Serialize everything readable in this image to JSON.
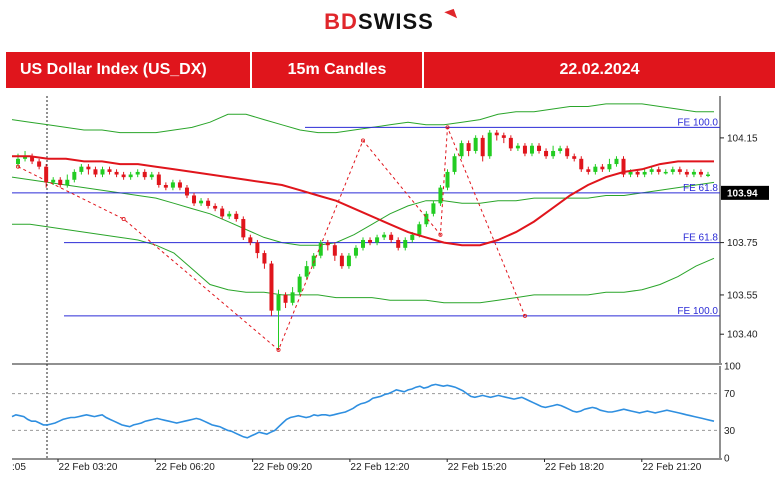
{
  "brand": {
    "logo_a": "BD",
    "logo_b": "SWISS"
  },
  "header": {
    "instrument": "US Dollar Index (US_DX)",
    "timeframe": "15m Candles",
    "date": "22.02.2024"
  },
  "colors": {
    "up": "#22cc22",
    "down": "#e0151c",
    "ma": "#e0151c",
    "band": "#2aa52a",
    "rsi": "#2f8fe0",
    "level": "#2b2bd6",
    "fib": "#e0151c",
    "header": "#e0151c"
  },
  "chart_data": [
    {
      "type": "candlestick",
      "title": "",
      "ylim": [
        103.29,
        104.31
      ],
      "yticks": [
        104.15,
        103.75,
        103.55,
        103.4
      ],
      "xticks": [
        "22 Feb 03:20",
        "22 Feb 06:20",
        "22 Feb 09:20",
        "22 Feb 12:20",
        "22 Feb 15:20",
        "22 Feb 18:20",
        "22 Feb 21:20"
      ],
      "xtick_partial": ":05",
      "current_price": "103.94",
      "levels": [
        {
          "label": "FE 100.0",
          "value": 104.19
        },
        {
          "label": "FE 61.8",
          "value": 103.94
        },
        {
          "label": "FE 61.8",
          "value": 103.75
        },
        {
          "label": "FE 100.0",
          "value": 103.47
        }
      ],
      "candles": [
        [
          104.05,
          104.07,
          104.09,
          104.04
        ],
        [
          104.07,
          104.08,
          104.1,
          104.06
        ],
        [
          104.08,
          104.06,
          104.09,
          104.05
        ],
        [
          104.06,
          104.04,
          104.07,
          104.03
        ],
        [
          104.04,
          103.98,
          104.05,
          103.96
        ],
        [
          103.98,
          103.99,
          104.0,
          103.97
        ],
        [
          103.99,
          103.97,
          104.0,
          103.96
        ],
        [
          103.97,
          103.99,
          104.01,
          103.96
        ],
        [
          103.99,
          104.02,
          104.03,
          103.98
        ],
        [
          104.02,
          104.04,
          104.05,
          104.01
        ],
        [
          104.04,
          104.03,
          104.05,
          104.01
        ],
        [
          104.03,
          104.01,
          104.04,
          104.0
        ],
        [
          104.01,
          104.03,
          104.04,
          104.0
        ],
        [
          104.03,
          104.02,
          104.04,
          104.01
        ],
        [
          104.02,
          104.01,
          104.03,
          104.0
        ],
        [
          104.01,
          104.0,
          104.02,
          103.99
        ],
        [
          104.0,
          104.01,
          104.02,
          103.99
        ],
        [
          104.01,
          104.02,
          104.03,
          104.0
        ],
        [
          104.02,
          104.0,
          104.03,
          103.99
        ],
        [
          104.0,
          104.01,
          104.02,
          103.99
        ],
        [
          104.01,
          103.97,
          104.02,
          103.96
        ],
        [
          103.97,
          103.96,
          103.98,
          103.95
        ],
        [
          103.96,
          103.98,
          103.99,
          103.95
        ],
        [
          103.98,
          103.96,
          103.99,
          103.95
        ],
        [
          103.96,
          103.93,
          103.97,
          103.92
        ],
        [
          103.93,
          103.9,
          103.94,
          103.89
        ],
        [
          103.9,
          103.91,
          103.92,
          103.89
        ],
        [
          103.91,
          103.89,
          103.92,
          103.88
        ],
        [
          103.89,
          103.88,
          103.9,
          103.87
        ],
        [
          103.88,
          103.85,
          103.89,
          103.84
        ],
        [
          103.85,
          103.86,
          103.87,
          103.84
        ],
        [
          103.86,
          103.84,
          103.87,
          103.83
        ],
        [
          103.84,
          103.77,
          103.85,
          103.76
        ],
        [
          103.77,
          103.75,
          103.78,
          103.74
        ],
        [
          103.75,
          103.71,
          103.76,
          103.69
        ],
        [
          103.71,
          103.67,
          103.72,
          103.65
        ],
        [
          103.67,
          103.49,
          103.68,
          103.47
        ],
        [
          103.49,
          103.55,
          103.57,
          103.34
        ],
        [
          103.55,
          103.52,
          103.56,
          103.5
        ],
        [
          103.52,
          103.56,
          103.58,
          103.51
        ],
        [
          103.56,
          103.62,
          103.63,
          103.55
        ],
        [
          103.62,
          103.66,
          103.68,
          103.61
        ],
        [
          103.66,
          103.7,
          103.71,
          103.65
        ],
        [
          103.7,
          103.75,
          103.76,
          103.69
        ],
        [
          103.75,
          103.74,
          103.76,
          103.72
        ],
        [
          103.74,
          103.7,
          103.75,
          103.68
        ],
        [
          103.7,
          103.66,
          103.71,
          103.65
        ],
        [
          103.66,
          103.7,
          103.71,
          103.65
        ],
        [
          103.7,
          103.73,
          103.74,
          103.69
        ],
        [
          103.73,
          103.76,
          103.77,
          103.72
        ],
        [
          103.76,
          103.75,
          103.77,
          103.74
        ],
        [
          103.75,
          103.77,
          103.78,
          103.74
        ],
        [
          103.77,
          103.78,
          103.79,
          103.76
        ],
        [
          103.78,
          103.76,
          103.79,
          103.75
        ],
        [
          103.76,
          103.73,
          103.77,
          103.72
        ],
        [
          103.73,
          103.76,
          103.77,
          103.72
        ],
        [
          103.76,
          103.78,
          103.79,
          103.75
        ],
        [
          103.78,
          103.82,
          103.83,
          103.77
        ],
        [
          103.82,
          103.86,
          103.87,
          103.81
        ],
        [
          103.86,
          103.9,
          103.91,
          103.85
        ],
        [
          103.9,
          103.96,
          103.97,
          103.89
        ],
        [
          103.96,
          104.02,
          104.03,
          103.95
        ],
        [
          104.02,
          104.08,
          104.09,
          104.01
        ],
        [
          104.08,
          104.13,
          104.14,
          104.07
        ],
        [
          104.13,
          104.1,
          104.14,
          104.08
        ],
        [
          104.1,
          104.15,
          104.16,
          104.09
        ],
        [
          104.15,
          104.08,
          104.16,
          104.06
        ],
        [
          104.08,
          104.17,
          104.18,
          104.07
        ],
        [
          104.17,
          104.16,
          104.18,
          104.14
        ],
        [
          104.16,
          104.15,
          104.17,
          104.13
        ],
        [
          104.15,
          104.11,
          104.16,
          104.1
        ],
        [
          104.11,
          104.12,
          104.13,
          104.1
        ],
        [
          104.12,
          104.09,
          104.13,
          104.08
        ],
        [
          104.09,
          104.12,
          104.13,
          104.08
        ],
        [
          104.12,
          104.1,
          104.13,
          104.09
        ],
        [
          104.1,
          104.08,
          104.11,
          104.07
        ],
        [
          104.08,
          104.1,
          104.12,
          104.07
        ],
        [
          104.1,
          104.11,
          104.12,
          104.09
        ],
        [
          104.11,
          104.08,
          104.12,
          104.07
        ],
        [
          104.08,
          104.07,
          104.09,
          104.06
        ],
        [
          104.07,
          104.03,
          104.08,
          104.02
        ],
        [
          104.03,
          104.02,
          104.04,
          104.01
        ],
        [
          104.02,
          104.04,
          104.05,
          104.01
        ],
        [
          104.04,
          104.03,
          104.05,
          104.02
        ],
        [
          104.03,
          104.05,
          104.07,
          104.02
        ],
        [
          104.05,
          104.07,
          104.08,
          104.04
        ],
        [
          104.07,
          104.01,
          104.08,
          104.0
        ],
        [
          104.01,
          104.02,
          104.03,
          104.0
        ],
        [
          104.02,
          104.01,
          104.03,
          104.0
        ],
        [
          104.01,
          104.02,
          104.03,
          104.0
        ],
        [
          104.02,
          104.03,
          104.04,
          104.01
        ],
        [
          104.03,
          104.02,
          104.04,
          104.01
        ],
        [
          104.02,
          104.02,
          104.03,
          104.01
        ],
        [
          104.02,
          104.03,
          104.04,
          104.01
        ],
        [
          104.03,
          104.02,
          104.04,
          104.01
        ],
        [
          104.02,
          104.01,
          104.03,
          104.0
        ],
        [
          104.01,
          104.02,
          104.03,
          104.0
        ],
        [
          104.02,
          104.01,
          104.03,
          104.0
        ],
        [
          104.01,
          104.01,
          104.02,
          104.0
        ]
      ],
      "ma": [
        104.08,
        104.08,
        104.07,
        104.07,
        104.06,
        104.06,
        104.05,
        104.05,
        104.04,
        104.03,
        104.02,
        104.01,
        104.0,
        103.99,
        103.98,
        103.97,
        103.95,
        103.93,
        103.91,
        103.88,
        103.85,
        103.82,
        103.79,
        103.77,
        103.75,
        103.74,
        103.74,
        103.76,
        103.79,
        103.83,
        103.88,
        103.93,
        103.97,
        104.0,
        104.02,
        104.03,
        104.05,
        104.06,
        104.06,
        104.06
      ],
      "band_upper": [
        104.22,
        104.21,
        104.2,
        104.19,
        104.18,
        104.18,
        104.17,
        104.17,
        104.17,
        104.18,
        104.19,
        104.21,
        104.24,
        104.24,
        104.22,
        104.2,
        104.18,
        104.17,
        104.17,
        104.18,
        104.19,
        104.2,
        104.21,
        104.2,
        104.2,
        104.21,
        104.22,
        104.24,
        104.25,
        104.25,
        104.26,
        104.27,
        104.27,
        104.28,
        104.28,
        104.28,
        104.27,
        104.26,
        104.25,
        104.25
      ],
      "band_middle": [
        104.0,
        103.99,
        103.98,
        103.97,
        103.96,
        103.95,
        103.94,
        103.93,
        103.92,
        103.9,
        103.88,
        103.86,
        103.83,
        103.8,
        103.77,
        103.75,
        103.74,
        103.74,
        103.75,
        103.78,
        103.82,
        103.86,
        103.89,
        103.91,
        103.91,
        103.9,
        103.9,
        103.91,
        103.91,
        103.92,
        103.92,
        103.92,
        103.92,
        103.93,
        103.93,
        103.94,
        103.95,
        103.96,
        103.97,
        103.98
      ],
      "band_lower": [
        103.82,
        103.82,
        103.81,
        103.8,
        103.79,
        103.78,
        103.77,
        103.76,
        103.74,
        103.71,
        103.65,
        103.59,
        103.57,
        103.56,
        103.56,
        103.55,
        103.55,
        103.55,
        103.54,
        103.54,
        103.54,
        103.53,
        103.53,
        103.53,
        103.52,
        103.52,
        103.52,
        103.53,
        103.54,
        103.55,
        103.55,
        103.55,
        103.55,
        103.56,
        103.56,
        103.57,
        103.59,
        103.62,
        103.66,
        103.69
      ],
      "fib_path": [
        [
          0,
          104.04
        ],
        [
          15,
          103.84
        ],
        [
          37,
          103.34
        ],
        [
          49,
          104.14
        ],
        [
          60,
          103.78
        ],
        [
          61,
          104.19
        ],
        [
          72,
          103.47
        ]
      ]
    },
    {
      "type": "line",
      "title": "",
      "ylim": [
        0,
        100
      ],
      "yticks": [
        100,
        70,
        30,
        0
      ],
      "levels": [
        70,
        30
      ],
      "series": [
        {
          "values": [
            45,
            47,
            46,
            45,
            42,
            40,
            40,
            38,
            36,
            36,
            37,
            38,
            40,
            42,
            43,
            44,
            44,
            45,
            46,
            47,
            46,
            45,
            46,
            47,
            44,
            42,
            40,
            38,
            36,
            35,
            34,
            36,
            37,
            38,
            40,
            41,
            42,
            43,
            42,
            41,
            40,
            39,
            38,
            39,
            40,
            41,
            42,
            43,
            42,
            40,
            38,
            36,
            35,
            34,
            32,
            30,
            29,
            27,
            25,
            23,
            22,
            24,
            26,
            28,
            27,
            26,
            28,
            30,
            34,
            38,
            42,
            44,
            45,
            46,
            45,
            44,
            45,
            47,
            46,
            47,
            47,
            46,
            47,
            48,
            49,
            50,
            52,
            54,
            57,
            59,
            60,
            62,
            65,
            66,
            67,
            69,
            70,
            72,
            74,
            73,
            72,
            74,
            75,
            77,
            78,
            76,
            77,
            79,
            80,
            79,
            78,
            79,
            78,
            77,
            75,
            73,
            70,
            67,
            66,
            67,
            68,
            67,
            66,
            67,
            68,
            67,
            66,
            65,
            64,
            65,
            66,
            64,
            62,
            60,
            58,
            56,
            55,
            56,
            57,
            58,
            57,
            55,
            53,
            51,
            50,
            51,
            53,
            54,
            55,
            54,
            52,
            51,
            50,
            50,
            51,
            52,
            53,
            52,
            51,
            50,
            49,
            50,
            51,
            50,
            49,
            50,
            51,
            52,
            51,
            50,
            49,
            48,
            47,
            46,
            45,
            44,
            43,
            42,
            41,
            40
          ]
        }
      ]
    }
  ]
}
